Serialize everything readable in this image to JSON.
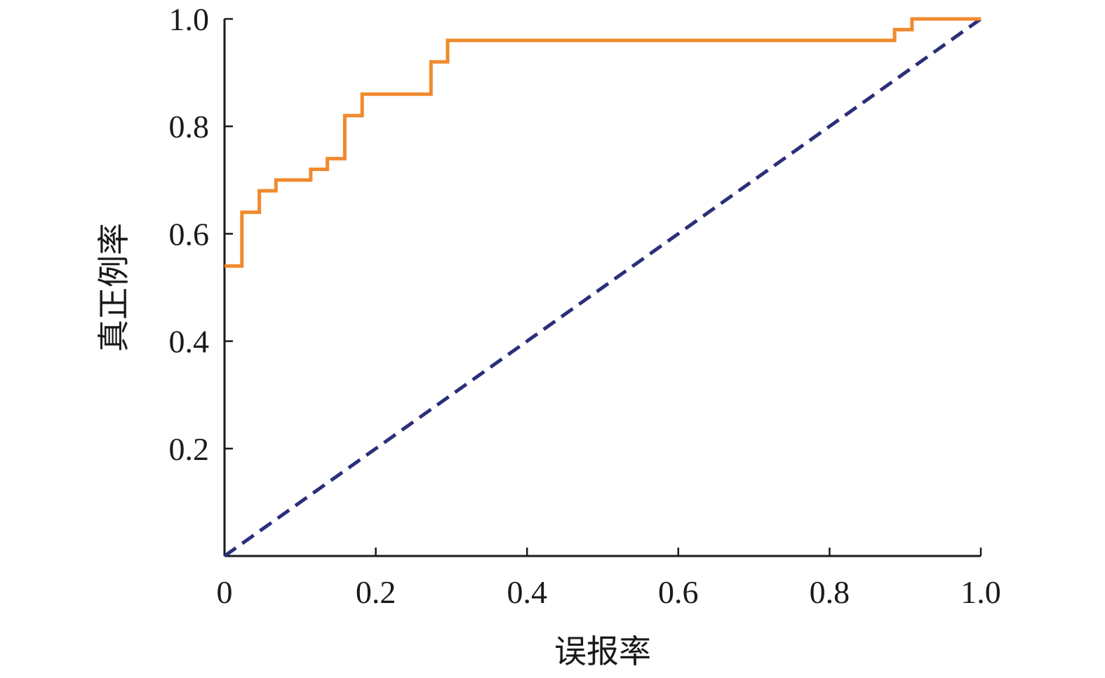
{
  "chart_data": {
    "type": "line",
    "title": "",
    "xlabel": "误报率",
    "ylabel": "真正例率",
    "xlim": [
      0,
      1
    ],
    "ylim": [
      0,
      1
    ],
    "x_ticks": [
      0,
      0.2,
      0.4,
      0.6,
      0.8,
      1.0
    ],
    "x_tick_labels": [
      "0",
      "0.2",
      "0.4",
      "0.6",
      "0.8",
      "1.0"
    ],
    "y_ticks": [
      0.2,
      0.4,
      0.6,
      0.8,
      1.0
    ],
    "y_tick_labels": [
      "0.2",
      "0.4",
      "0.6",
      "0.8",
      "1.0"
    ],
    "grid": false,
    "legend": "none",
    "series": [
      {
        "color": "#F08A2E",
        "style": "solid-step",
        "x": [
          0,
          0.023,
          0.023,
          0.046,
          0.046,
          0.068,
          0.068,
          0.114,
          0.114,
          0.136,
          0.136,
          0.159,
          0.159,
          0.182,
          0.182,
          0.273,
          0.273,
          0.295,
          0.295,
          0.886,
          0.886,
          0.909,
          0.909,
          1.0
        ],
        "y": [
          0.54,
          0.54,
          0.64,
          0.64,
          0.68,
          0.68,
          0.7,
          0.7,
          0.72,
          0.72,
          0.74,
          0.74,
          0.82,
          0.82,
          0.86,
          0.86,
          0.92,
          0.92,
          0.96,
          0.96,
          0.98,
          0.98,
          1.0,
          1.0
        ]
      },
      {
        "color": "#2B2F7A",
        "style": "dashed",
        "x": [
          0,
          1
        ],
        "y": [
          0,
          1
        ]
      }
    ]
  }
}
